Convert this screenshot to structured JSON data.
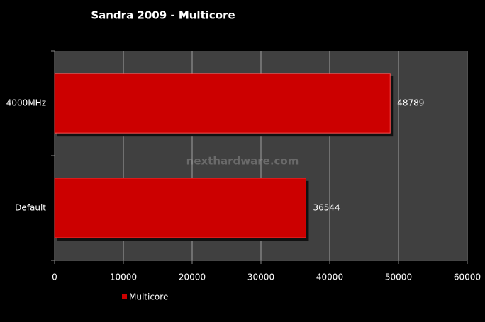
{
  "chart_data": {
    "type": "bar",
    "orientation": "horizontal",
    "title": "Sandra 2009 - Multicore",
    "watermark": "nexthardware.com",
    "categories": [
      "4000MHz",
      "Default"
    ],
    "series": [
      {
        "name": "Multicore",
        "color": "#cc0000",
        "values": [
          48789,
          36544
        ]
      }
    ],
    "xlim": [
      0,
      60000
    ],
    "xticks": [
      0,
      10000,
      20000,
      30000,
      40000,
      50000,
      60000
    ],
    "grid": true,
    "legend": "bottom"
  }
}
